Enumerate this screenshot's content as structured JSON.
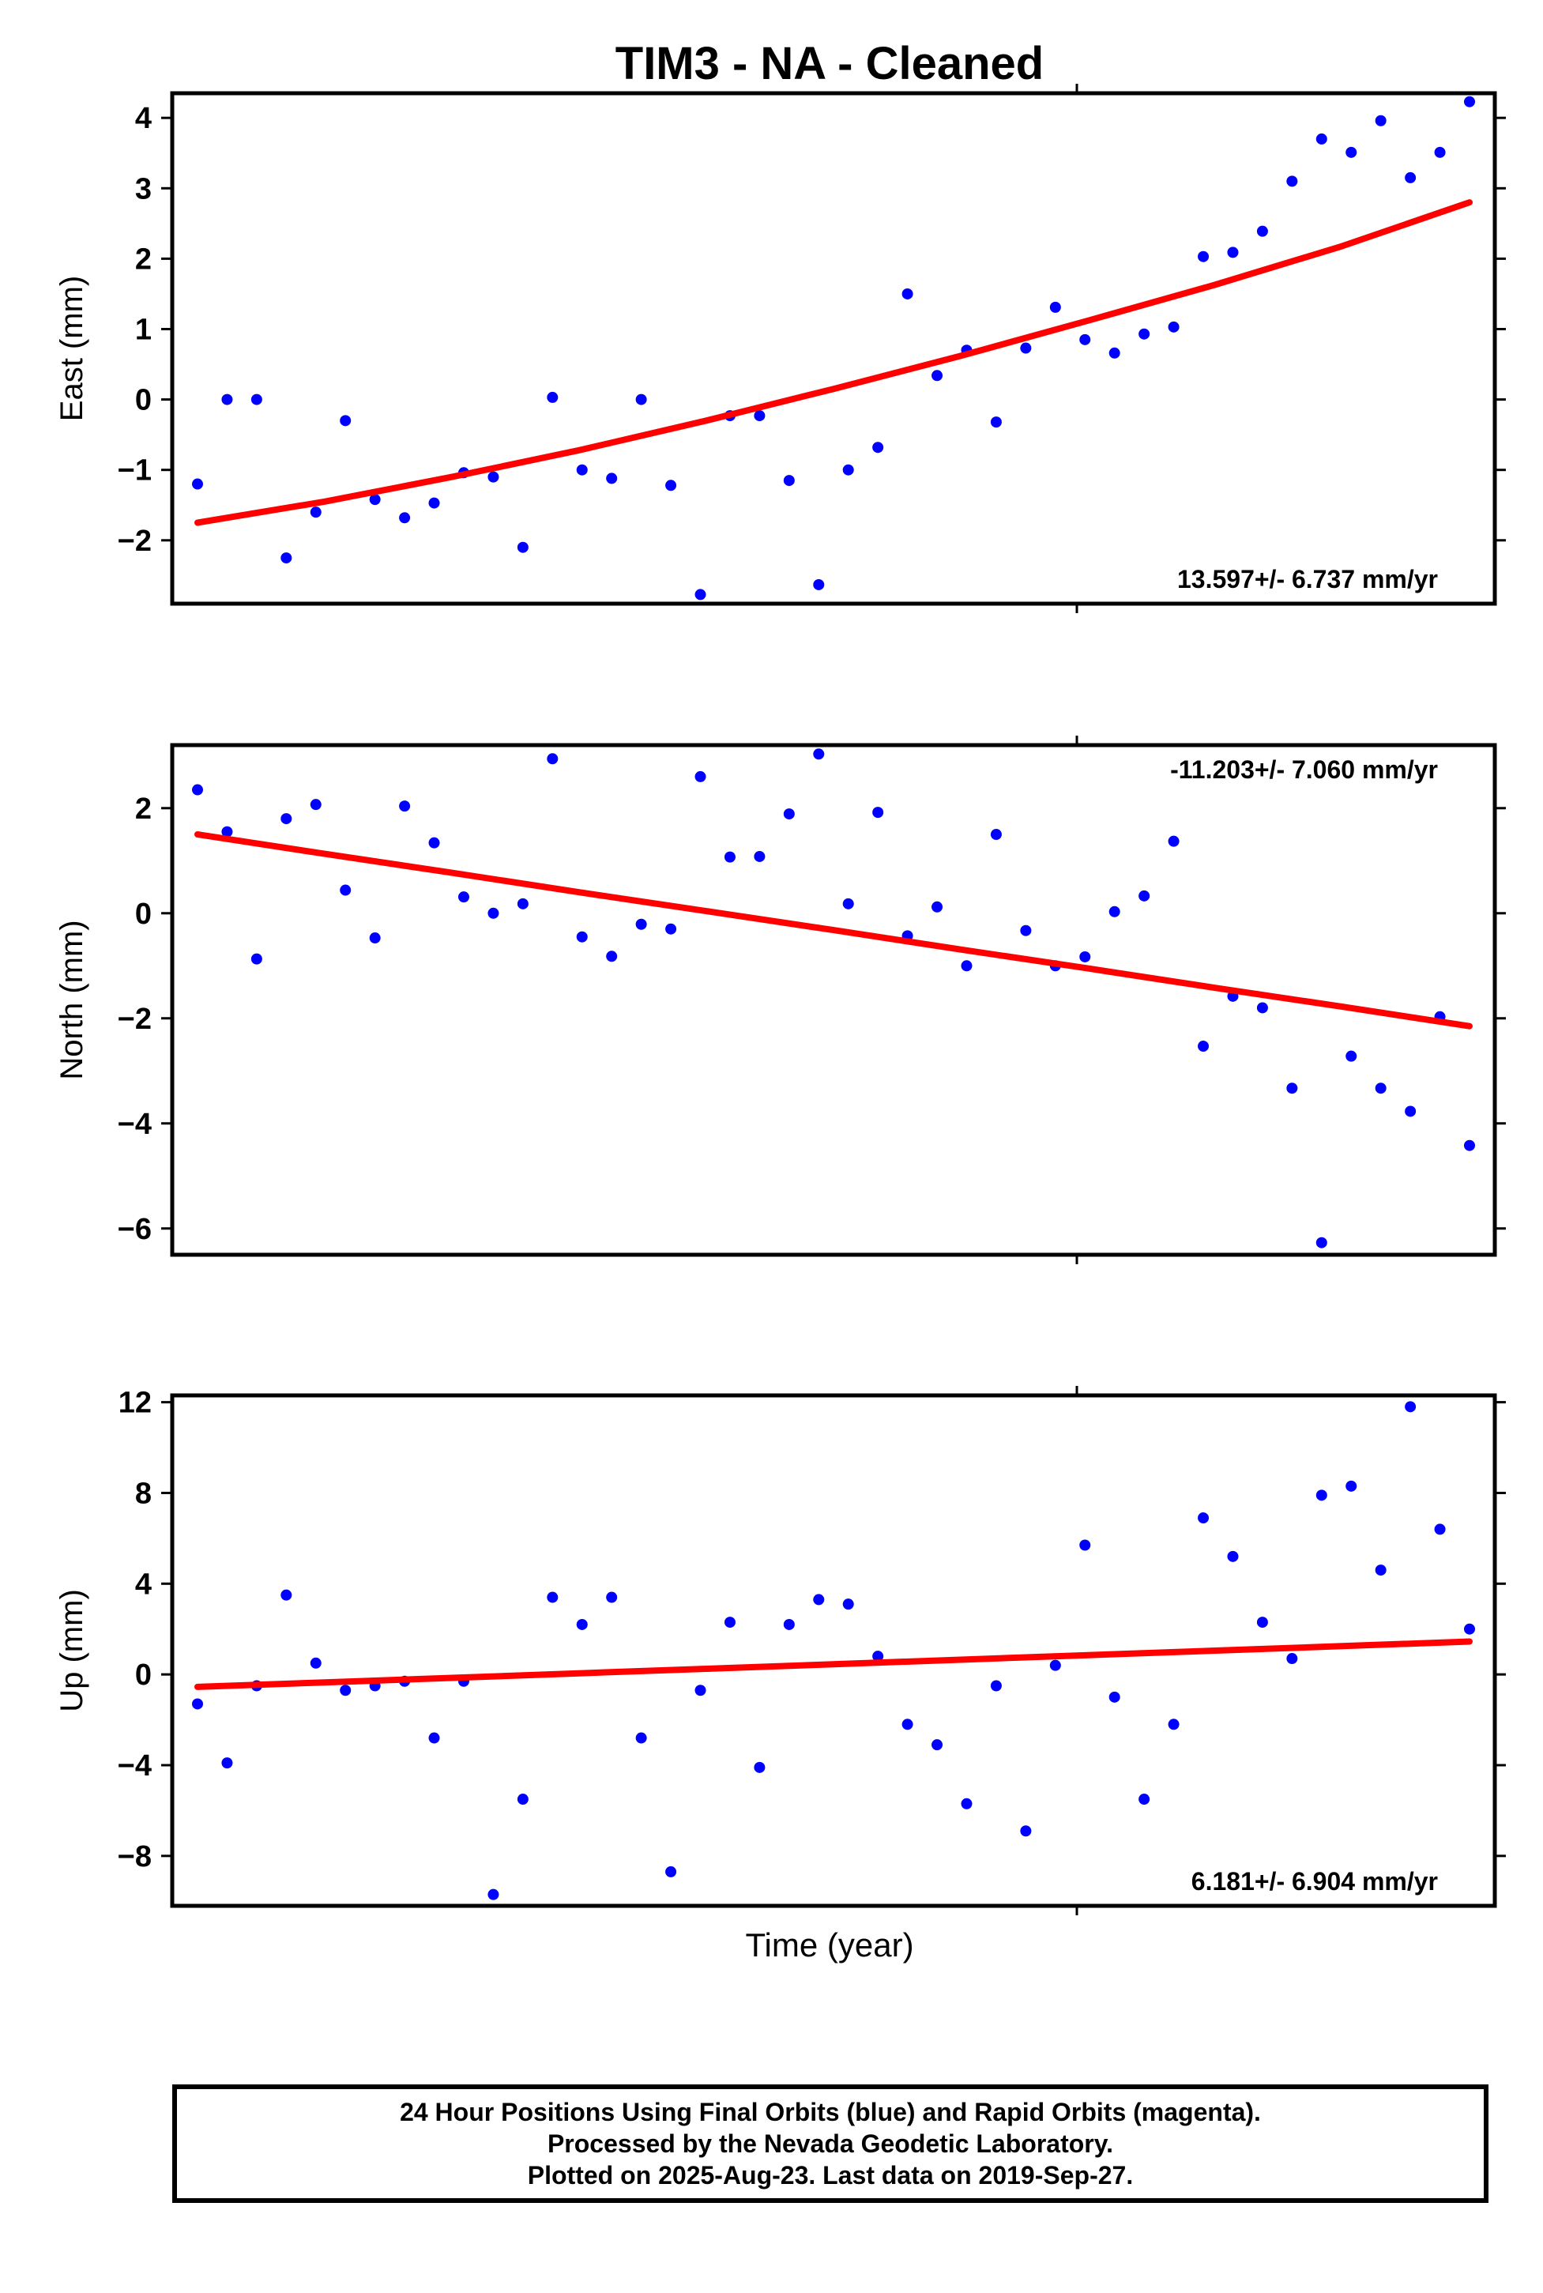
{
  "title": "TIM3  - NA - Cleaned",
  "xlabel": "Time (year)",
  "footer": [
    "24 Hour Positions Using Final Orbits (blue) and Rapid Orbits (magenta).",
    "Processed by the Nevada Geodetic Laboratory.",
    "Plotted on 2025-Aug-23. Last data on 2019-Sep-27."
  ],
  "colors": {
    "points": "#0000ff",
    "fit": "#ff0000",
    "frame": "#000000"
  },
  "chart_data": [
    {
      "type": "scatter",
      "ylabel": "East (mm)",
      "ylim": [
        -2.9,
        4.35
      ],
      "yticks": [
        4,
        3,
        2,
        1,
        0,
        -1,
        -2
      ],
      "rate_text": "13.597+/- 6.737 mm/yr",
      "rate_position": "bottom-right",
      "series": [
        {
          "values": [
            -1.2,
            0.0,
            0.0,
            -2.25,
            -1.6,
            -0.3,
            -1.42,
            -1.68,
            -1.47,
            -1.04,
            -1.1,
            -2.1,
            0.03,
            -1.0,
            -1.12,
            0.0,
            -1.22,
            -2.77,
            -0.23,
            -0.23,
            -1.15,
            -2.63,
            -1.0,
            -0.68,
            1.5,
            0.34,
            0.7,
            -0.32,
            0.73,
            1.31,
            0.85,
            0.66,
            0.93,
            1.03,
            2.03,
            2.09,
            2.39,
            3.1,
            3.7,
            3.51,
            3.96,
            3.15,
            3.51,
            4.23
          ]
        }
      ],
      "fit": [
        -1.75,
        -1.45,
        -1.1,
        -0.72,
        -0.3,
        0.15,
        0.62,
        1.12,
        1.63,
        2.18,
        2.8
      ]
    },
    {
      "type": "scatter",
      "ylabel": "North (mm)",
      "ylim": [
        -6.5,
        3.2
      ],
      "yticks": [
        2,
        0,
        -2,
        -4,
        -6
      ],
      "rate_text": "-11.203+/- 7.060 mm/yr",
      "rate_position": "top-right",
      "series": [
        {
          "values": [
            2.35,
            1.55,
            -0.87,
            1.8,
            2.07,
            0.44,
            -0.47,
            2.04,
            1.34,
            0.31,
            0.0,
            0.18,
            2.94,
            -0.45,
            -0.82,
            -0.21,
            -0.3,
            2.6,
            1.07,
            1.08,
            1.89,
            3.03,
            0.18,
            1.92,
            -0.43,
            0.12,
            -1.0,
            1.5,
            -0.33,
            -1.0,
            -0.83,
            0.03,
            0.33,
            1.37,
            -2.53,
            -1.58,
            -1.8,
            -3.33,
            -6.27,
            -2.72,
            -3.33,
            -3.77,
            -1.97,
            -4.42
          ]
        }
      ],
      "fit": [
        1.5,
        1.13,
        0.77,
        0.4,
        0.04,
        -0.32,
        -0.69,
        -1.05,
        -1.42,
        -1.78,
        -2.15
      ]
    },
    {
      "type": "scatter",
      "ylabel": "Up (mm)",
      "ylim": [
        -10.2,
        12.3
      ],
      "yticks": [
        12,
        8,
        4,
        0,
        -4,
        -8
      ],
      "rate_text": "6.181+/- 6.904 mm/yr",
      "rate_position": "bottom-right",
      "series": [
        {
          "values": [
            -1.3,
            -3.9,
            -0.5,
            3.5,
            0.5,
            -0.7,
            -0.5,
            -0.3,
            -2.8,
            -0.3,
            -9.7,
            -5.5,
            3.4,
            2.2,
            3.4,
            -2.8,
            -8.7,
            -0.7,
            2.3,
            -4.1,
            2.2,
            3.3,
            3.1,
            0.8,
            -2.2,
            -3.1,
            -5.7,
            -0.5,
            -6.9,
            0.4,
            5.7,
            -1.0,
            -5.5,
            -2.2,
            6.9,
            5.2,
            2.3,
            0.7,
            7.9,
            8.3,
            4.6,
            11.8,
            6.4,
            2.0
          ]
        }
      ],
      "fit": [
        -0.55,
        -0.35,
        -0.15,
        0.05,
        0.25,
        0.45,
        0.65,
        0.85,
        1.05,
        1.25,
        1.45
      ]
    }
  ]
}
